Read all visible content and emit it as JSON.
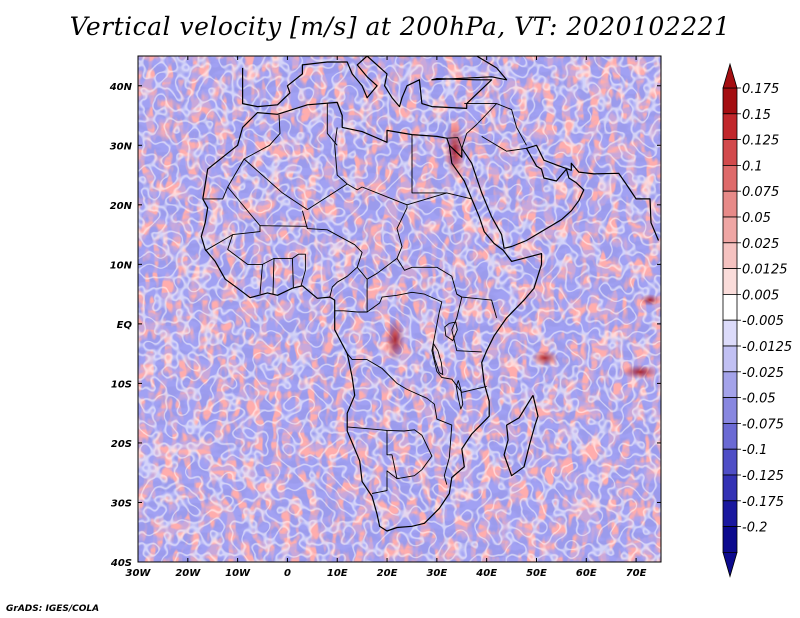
{
  "title": "Vertical velocity [m/s] at 200hPa, VT: 2020102221",
  "credit": "GrADS: IGES/COLA",
  "map": {
    "lon_range": [
      -30,
      75
    ],
    "lat_range": [
      -40,
      45
    ],
    "lat_ticks": [
      {
        "value": 40,
        "label": "40N"
      },
      {
        "value": 30,
        "label": "30N"
      },
      {
        "value": 20,
        "label": "20N"
      },
      {
        "value": 10,
        "label": "10N"
      },
      {
        "value": 0,
        "label": "EQ"
      },
      {
        "value": -10,
        "label": "10S"
      },
      {
        "value": -20,
        "label": "20S"
      },
      {
        "value": -30,
        "label": "30S"
      },
      {
        "value": -40,
        "label": "40S"
      }
    ],
    "lon_ticks": [
      {
        "value": -30,
        "label": "30W"
      },
      {
        "value": -20,
        "label": "20W"
      },
      {
        "value": -10,
        "label": "10W"
      },
      {
        "value": 0,
        "label": "0"
      },
      {
        "value": 10,
        "label": "10E"
      },
      {
        "value": 20,
        "label": "20E"
      },
      {
        "value": 30,
        "label": "30E"
      },
      {
        "value": 40,
        "label": "40E"
      },
      {
        "value": 50,
        "label": "50E"
      },
      {
        "value": 60,
        "label": "60E"
      },
      {
        "value": 70,
        "label": "70E"
      }
    ],
    "coastline": [
      [
        -17,
        21
      ],
      [
        -16,
        26
      ],
      [
        -13,
        28
      ],
      [
        -10,
        30
      ],
      [
        -9,
        33
      ],
      [
        -6,
        35.5
      ],
      [
        -2,
        35.2
      ],
      [
        4,
        36.8
      ],
      [
        10,
        37.2
      ],
      [
        11,
        35
      ],
      [
        11,
        33
      ],
      [
        15,
        32.3
      ],
      [
        20,
        30.5
      ],
      [
        20,
        32.5
      ],
      [
        25,
        31.8
      ],
      [
        30,
        31.5
      ],
      [
        32,
        31.2
      ],
      [
        32.5,
        30
      ],
      [
        33,
        27
      ],
      [
        35.5,
        24
      ],
      [
        37,
        21
      ],
      [
        38.5,
        18
      ],
      [
        39.5,
        15.5
      ],
      [
        41.5,
        13.5
      ],
      [
        43.3,
        12.4
      ],
      [
        45,
        10.5
      ],
      [
        51,
        11.8
      ],
      [
        51,
        10
      ],
      [
        49.5,
        6
      ],
      [
        47.5,
        4
      ],
      [
        44,
        1
      ],
      [
        41.5,
        -2
      ],
      [
        40,
        -4.5
      ],
      [
        39,
        -6.5
      ],
      [
        39.5,
        -10
      ],
      [
        40.5,
        -13
      ],
      [
        40.5,
        -15.5
      ],
      [
        37,
        -18.5
      ],
      [
        35,
        -21
      ],
      [
        35.5,
        -24
      ],
      [
        33,
        -25.8
      ],
      [
        32.5,
        -28.5
      ],
      [
        30.5,
        -31
      ],
      [
        27.5,
        -33.5
      ],
      [
        25,
        -34
      ],
      [
        22,
        -34.2
      ],
      [
        20,
        -34.8
      ],
      [
        18.5,
        -34
      ],
      [
        18,
        -32
      ],
      [
        17,
        -29
      ],
      [
        15,
        -26.5
      ],
      [
        14.5,
        -23
      ],
      [
        12,
        -18
      ],
      [
        12,
        -15
      ],
      [
        13.5,
        -12
      ],
      [
        13,
        -9
      ],
      [
        12.3,
        -6.1
      ],
      [
        12,
        -5
      ],
      [
        9.5,
        -1
      ],
      [
        9.5,
        1
      ],
      [
        9.5,
        4
      ],
      [
        8.5,
        4.5
      ],
      [
        6,
        4.3
      ],
      [
        3,
        6.4
      ],
      [
        1,
        6
      ],
      [
        -2,
        4.8
      ],
      [
        -4,
        5.2
      ],
      [
        -7.5,
        4.4
      ],
      [
        -10,
        6
      ],
      [
        -12.5,
        7.5
      ],
      [
        -14.5,
        10.5
      ],
      [
        -16.5,
        12.5
      ],
      [
        -17.3,
        14.7
      ],
      [
        -16.5,
        17
      ],
      [
        -16,
        19.5
      ],
      [
        -17,
        21
      ]
    ],
    "borders": [
      [
        [
          -8.7,
          27.7
        ],
        [
          -1,
          22
        ],
        [
          4,
          19.2
        ],
        [
          12,
          23.5
        ],
        [
          14,
          22.5
        ],
        [
          15,
          23
        ]
      ],
      [
        [
          3,
          19
        ],
        [
          4,
          16
        ],
        [
          8,
          15.8
        ],
        [
          13.5,
          13.3
        ],
        [
          15,
          12
        ],
        [
          14,
          9.5
        ],
        [
          12,
          8
        ],
        [
          10,
          7
        ],
        [
          9,
          6.2
        ],
        [
          8.5,
          4.5
        ]
      ],
      [
        [
          10,
          33
        ],
        [
          9.5,
          30
        ],
        [
          10,
          25
        ],
        [
          12,
          23.5
        ]
      ],
      [
        [
          15,
          23
        ],
        [
          24,
          20
        ],
        [
          24,
          19.5
        ],
        [
          22,
          16
        ],
        [
          23,
          13
        ],
        [
          22,
          11
        ],
        [
          23.5,
          9
        ],
        [
          25,
          9.5
        ],
        [
          27,
          9.5
        ],
        [
          30,
          9.5
        ],
        [
          33,
          8
        ],
        [
          34,
          5
        ],
        [
          35,
          4.5
        ],
        [
          41,
          4
        ],
        [
          42,
          1
        ]
      ],
      [
        [
          25,
          31.8
        ],
        [
          25,
          22
        ],
        [
          32,
          22
        ],
        [
          37,
          21
        ]
      ],
      [
        [
          24,
          20
        ],
        [
          32,
          22
        ]
      ],
      [
        [
          34,
          5
        ],
        [
          35,
          4.5
        ],
        [
          34,
          1
        ],
        [
          33,
          -1
        ],
        [
          34,
          -4.5
        ],
        [
          39,
          -4.7
        ]
      ],
      [
        [
          9.5,
          2.2
        ],
        [
          11.3,
          2.2
        ],
        [
          14,
          2
        ],
        [
          16,
          2
        ],
        [
          18.5,
          3.5
        ],
        [
          19,
          4.5
        ],
        [
          22,
          4.8
        ],
        [
          25,
          5.3
        ],
        [
          27.5,
          5
        ],
        [
          31,
          3.7
        ],
        [
          30.5,
          2
        ],
        [
          29.7,
          -1.4
        ],
        [
          29,
          -4.5
        ],
        [
          30,
          -8
        ],
        [
          31,
          -9
        ],
        [
          33,
          -9.3
        ],
        [
          35,
          -11.5
        ],
        [
          40,
          -10.5
        ]
      ],
      [
        [
          12,
          -5
        ],
        [
          13,
          -6
        ],
        [
          16,
          -6
        ],
        [
          19,
          -7.5
        ],
        [
          22,
          -10
        ],
        [
          24,
          -11
        ],
        [
          28,
          -12.5
        ],
        [
          29.5,
          -13.5
        ],
        [
          30,
          -16
        ],
        [
          33,
          -17
        ],
        [
          32.5,
          -22.5
        ],
        [
          31.5,
          -25.5
        ],
        [
          32,
          -27
        ]
      ],
      [
        [
          12,
          -17.3
        ],
        [
          20,
          -17.9
        ],
        [
          23.4,
          -18
        ],
        [
          25.5,
          -17.8
        ],
        [
          27,
          -18.7
        ],
        [
          29,
          -22.2
        ],
        [
          27,
          -24.5
        ],
        [
          25.5,
          -25.5
        ],
        [
          22,
          -26
        ],
        [
          20,
          -24.7
        ],
        [
          20,
          -28
        ],
        [
          17,
          -28.5
        ]
      ],
      [
        [
          20,
          -17.9
        ],
        [
          20,
          -22
        ],
        [
          21,
          -22
        ],
        [
          22,
          -26
        ]
      ],
      [
        [
          -17,
          21
        ],
        [
          -13,
          21
        ],
        [
          -12,
          23
        ],
        [
          -8.7,
          27.7
        ],
        [
          -3.6,
          30
        ],
        [
          -1.5,
          32
        ],
        [
          -1.7,
          35.1
        ]
      ],
      [
        [
          -12,
          23
        ],
        [
          -5.5,
          16.5
        ],
        [
          -5.5,
          15.5
        ],
        [
          -11,
          15
        ],
        [
          -12,
          14.5
        ],
        [
          -16.5,
          12.3
        ]
      ],
      [
        [
          -5.5,
          16.5
        ],
        [
          4,
          16.4
        ]
      ],
      [
        [
          -11,
          15
        ],
        [
          -12,
          12.5
        ],
        [
          -8,
          10
        ],
        [
          -5,
          10
        ],
        [
          -2.7,
          11
        ],
        [
          1,
          11
        ],
        [
          2.2,
          11.7
        ],
        [
          3.6,
          11.7
        ],
        [
          3.6,
          9
        ],
        [
          2.7,
          6.3
        ]
      ],
      [
        [
          -5,
          10
        ],
        [
          -5.5,
          5
        ]
      ],
      [
        [
          -2.7,
          11
        ],
        [
          -2.9,
          5
        ]
      ],
      [
        [
          1,
          11
        ],
        [
          1.2,
          6
        ]
      ],
      [
        [
          14,
          9.5
        ],
        [
          16,
          7.5
        ],
        [
          18,
          8.5
        ],
        [
          22,
          11
        ]
      ],
      [
        [
          16,
          7.5
        ],
        [
          16,
          2
        ]
      ],
      [
        [
          32,
          31.2
        ],
        [
          34.2,
          31.3
        ],
        [
          35,
          29.5
        ],
        [
          36,
          32
        ],
        [
          38,
          33.5
        ],
        [
          42,
          37
        ]
      ],
      [
        [
          35.5,
          37
        ],
        [
          42,
          37
        ],
        [
          45,
          36
        ],
        [
          46,
          33
        ],
        [
          48,
          30
        ]
      ],
      [
        [
          39,
          31.5
        ],
        [
          44,
          29
        ],
        [
          48,
          29.5
        ]
      ],
      [
        [
          8,
          37
        ],
        [
          8,
          32
        ],
        [
          10,
          30
        ]
      ]
    ],
    "coast_eur": [
      [
        -9,
        43
      ],
      [
        -9,
        37
      ],
      [
        -6,
        36.5
      ],
      [
        -2,
        36.8
      ],
      [
        0.5,
        38.8
      ],
      [
        0,
        40
      ],
      [
        3,
        42
      ],
      [
        3,
        43.5
      ],
      [
        8,
        44
      ],
      [
        12,
        44
      ],
      [
        13,
        42
      ],
      [
        15,
        40
      ],
      [
        16,
        38
      ],
      [
        18,
        40
      ],
      [
        16,
        41.5
      ],
      [
        14,
        43.5
      ],
      [
        16,
        45
      ],
      [
        20,
        42
      ],
      [
        19.5,
        40
      ],
      [
        21,
        38
      ],
      [
        22.5,
        36.5
      ],
      [
        23,
        38
      ],
      [
        24,
        40
      ],
      [
        26.5,
        41
      ],
      [
        27,
        37
      ],
      [
        29,
        36.5
      ],
      [
        36,
        36.2
      ],
      [
        36,
        37
      ],
      [
        41,
        41
      ],
      [
        38,
        41
      ],
      [
        30,
        41.2
      ],
      [
        29,
        41
      ],
      [
        41,
        41.5
      ],
      [
        44,
        41
      ],
      [
        42,
        43
      ],
      [
        38,
        45
      ],
      [
        28,
        45
      ],
      [
        22,
        45
      ]
    ],
    "coast_arab": [
      [
        32.5,
        30
      ],
      [
        35,
        28
      ],
      [
        35,
        29.5
      ],
      [
        37,
        27
      ],
      [
        39,
        22
      ],
      [
        41,
        18
      ],
      [
        43,
        15
      ],
      [
        43.5,
        12.7
      ],
      [
        45,
        13
      ],
      [
        48,
        14
      ],
      [
        52,
        16
      ],
      [
        55,
        17.5
      ],
      [
        57,
        19
      ],
      [
        58.5,
        20.7
      ],
      [
        59.5,
        22.5
      ],
      [
        58,
        23.7
      ],
      [
        56.5,
        24.5
      ],
      [
        56,
        26
      ],
      [
        54,
        24
      ],
      [
        51.5,
        24.5
      ],
      [
        51,
        26
      ],
      [
        50,
        26.5
      ],
      [
        48,
        29.5
      ],
      [
        50,
        30
      ],
      [
        51.5,
        27.5
      ],
      [
        54,
        26.7
      ],
      [
        57,
        25.8
      ],
      [
        57,
        27
      ],
      [
        58.5,
        25.5
      ],
      [
        61.5,
        25.2
      ],
      [
        66.5,
        25.3
      ],
      [
        68,
        23.5
      ],
      [
        70,
        21
      ],
      [
        72.8,
        21
      ],
      [
        73,
        17
      ],
      [
        73.5,
        16
      ],
      [
        74.5,
        14
      ]
    ],
    "madagascar": [
      [
        49.3,
        -12
      ],
      [
        50.3,
        -15.5
      ],
      [
        49.7,
        -17
      ],
      [
        48.7,
        -20
      ],
      [
        47.5,
        -24
      ],
      [
        45,
        -25.5
      ],
      [
        43.5,
        -22
      ],
      [
        44.3,
        -19.5
      ],
      [
        44,
        -17
      ],
      [
        46.5,
        -15.8
      ],
      [
        49.3,
        -12
      ]
    ],
    "lakes": [
      [
        [
          32.5,
          0.1
        ],
        [
          33.8,
          0.3
        ],
        [
          34.1,
          -1
        ],
        [
          33.2,
          -2.8
        ],
        [
          31.8,
          -2
        ],
        [
          31.6,
          -0.5
        ],
        [
          32.5,
          0.1
        ]
      ],
      [
        [
          29.3,
          -3.3
        ],
        [
          30.2,
          -4.5
        ],
        [
          30.9,
          -6.5
        ],
        [
          31.2,
          -8.5
        ],
        [
          30.5,
          -8.2
        ],
        [
          29.6,
          -6
        ],
        [
          29.2,
          -4.5
        ],
        [
          29.3,
          -3.3
        ]
      ],
      [
        [
          34.3,
          -9.5
        ],
        [
          34.8,
          -11
        ],
        [
          35.2,
          -13.5
        ],
        [
          34.8,
          -14.3
        ],
        [
          34.3,
          -12.5
        ],
        [
          33.9,
          -10.5
        ],
        [
          34.3,
          -9.5
        ]
      ]
    ]
  },
  "colorbar": {
    "levels": [
      "0.175",
      "0.15",
      "0.125",
      "0.1",
      "0.075",
      "0.05",
      "0.025",
      "0.0125",
      "0.005",
      "-0.005",
      "-0.0125",
      "-0.025",
      "-0.05",
      "-0.075",
      "-0.1",
      "-0.125",
      "-0.175",
      "-0.2"
    ],
    "colors": [
      "#a40e11",
      "#c1272b",
      "#d24a4c",
      "#de6a6a",
      "#e78a88",
      "#efa6a4",
      "#f5c2c0",
      "#fadcda",
      "#ffffff",
      "#dcdbfa",
      "#c1c0f3",
      "#a4a3ea",
      "#8887e0",
      "#6b6ad4",
      "#4f4ec6",
      "#3331b4",
      "#1a189f",
      "#0c0a8e"
    ]
  }
}
